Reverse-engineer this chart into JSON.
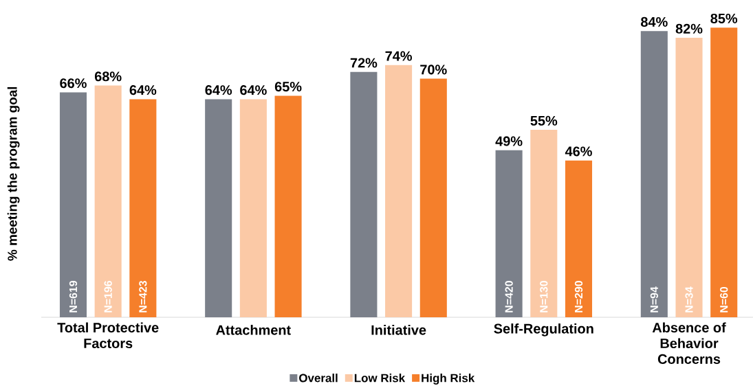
{
  "chart_data": {
    "type": "bar",
    "ylabel": "% meeting the program goal",
    "categories": [
      "Total Protective Factors",
      "Attachment",
      "Initiative",
      "Self-Regulation",
      "Absence of Behavior Concerns"
    ],
    "series": [
      {
        "name": "Overall",
        "color": "#7b808a",
        "values": [
          66,
          64,
          72,
          49,
          84
        ],
        "value_labels": [
          "66%",
          "64%",
          "72%",
          "49%",
          "84%"
        ]
      },
      {
        "name": "Low Risk",
        "color": "#fbc9a6",
        "values": [
          68,
          64,
          74,
          55,
          82
        ],
        "value_labels": [
          "68%",
          "64%",
          "74%",
          "55%",
          "82%"
        ]
      },
      {
        "name": "High Risk",
        "color": "#f57f2b",
        "values": [
          64,
          65,
          70,
          46,
          85
        ],
        "value_labels": [
          "64%",
          "65%",
          "70%",
          "46%",
          "85%"
        ]
      }
    ],
    "legend": "bottom",
    "annotations": [
      {
        "text": "N=619",
        "x": "Total Protective Factors",
        "y": 0
      },
      {
        "text": "N=196",
        "x": "Total Protective Factors",
        "y": 0
      },
      {
        "text": "N=423",
        "x": "Total Protective Factors",
        "y": 0
      },
      {
        "text": "N=420",
        "x": "Self-Regulation",
        "y": 0
      },
      {
        "text": "N=130",
        "x": "Self-Regulation",
        "y": 0
      },
      {
        "text": "N=290",
        "x": "Self-Regulation",
        "y": 0
      },
      {
        "text": "N=94",
        "x": "Absence of Behavior Concerns",
        "y": 0
      },
      {
        "text": "N=34",
        "x": "Absence of Behavior Concerns",
        "y": 0
      },
      {
        "text": "N=60",
        "x": "Absence of Behavior Concerns",
        "y": 0
      }
    ]
  }
}
